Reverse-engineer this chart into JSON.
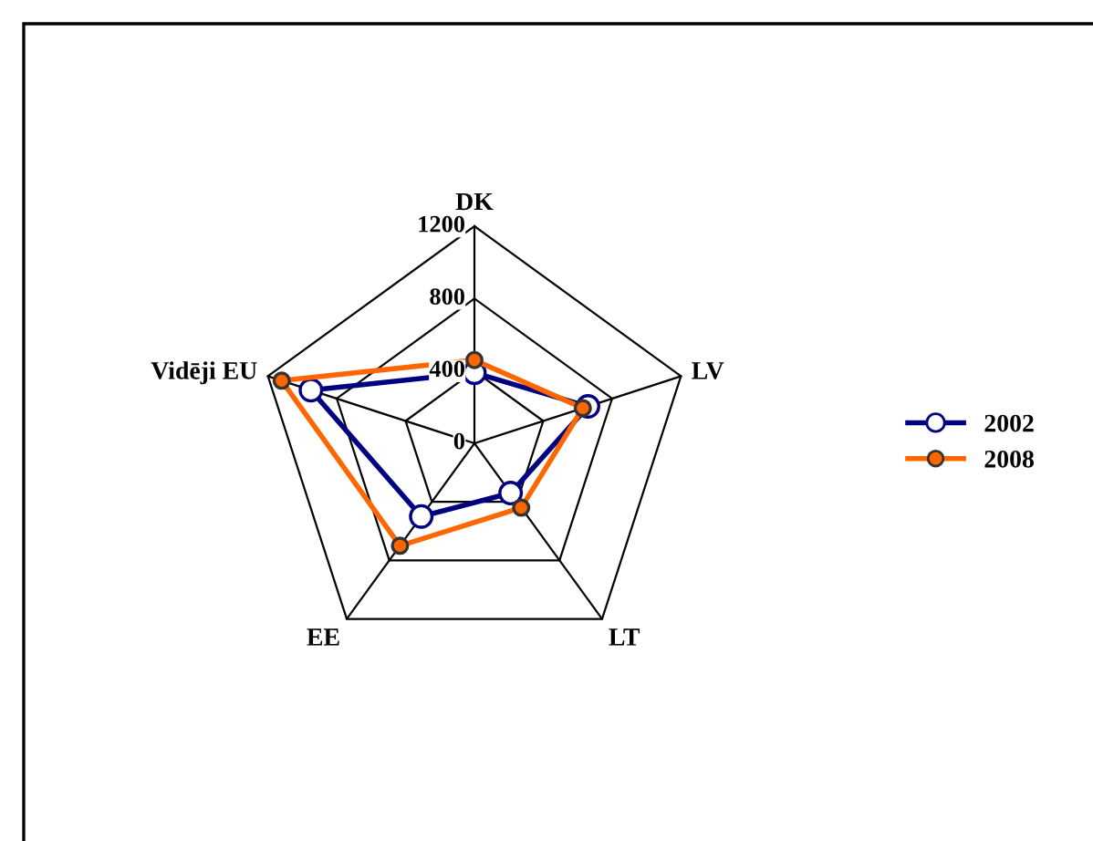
{
  "chart_data": {
    "type": "radar",
    "categories": [
      "DK",
      "LV",
      "LT",
      "EE",
      "Vidēji EU"
    ],
    "series": [
      {
        "name": "2002",
        "color": "#000080",
        "values": [
          390,
          660,
          340,
          500,
          950
        ]
      },
      {
        "name": "2008",
        "color": "#ff6600",
        "values": [
          460,
          630,
          440,
          700,
          1120
        ]
      }
    ],
    "ylim": [
      0,
      1200
    ],
    "yticks": [
      0,
      400,
      800,
      1200
    ],
    "grid": true,
    "legend": "right",
    "marker": "circle",
    "line_style": "solid"
  }
}
